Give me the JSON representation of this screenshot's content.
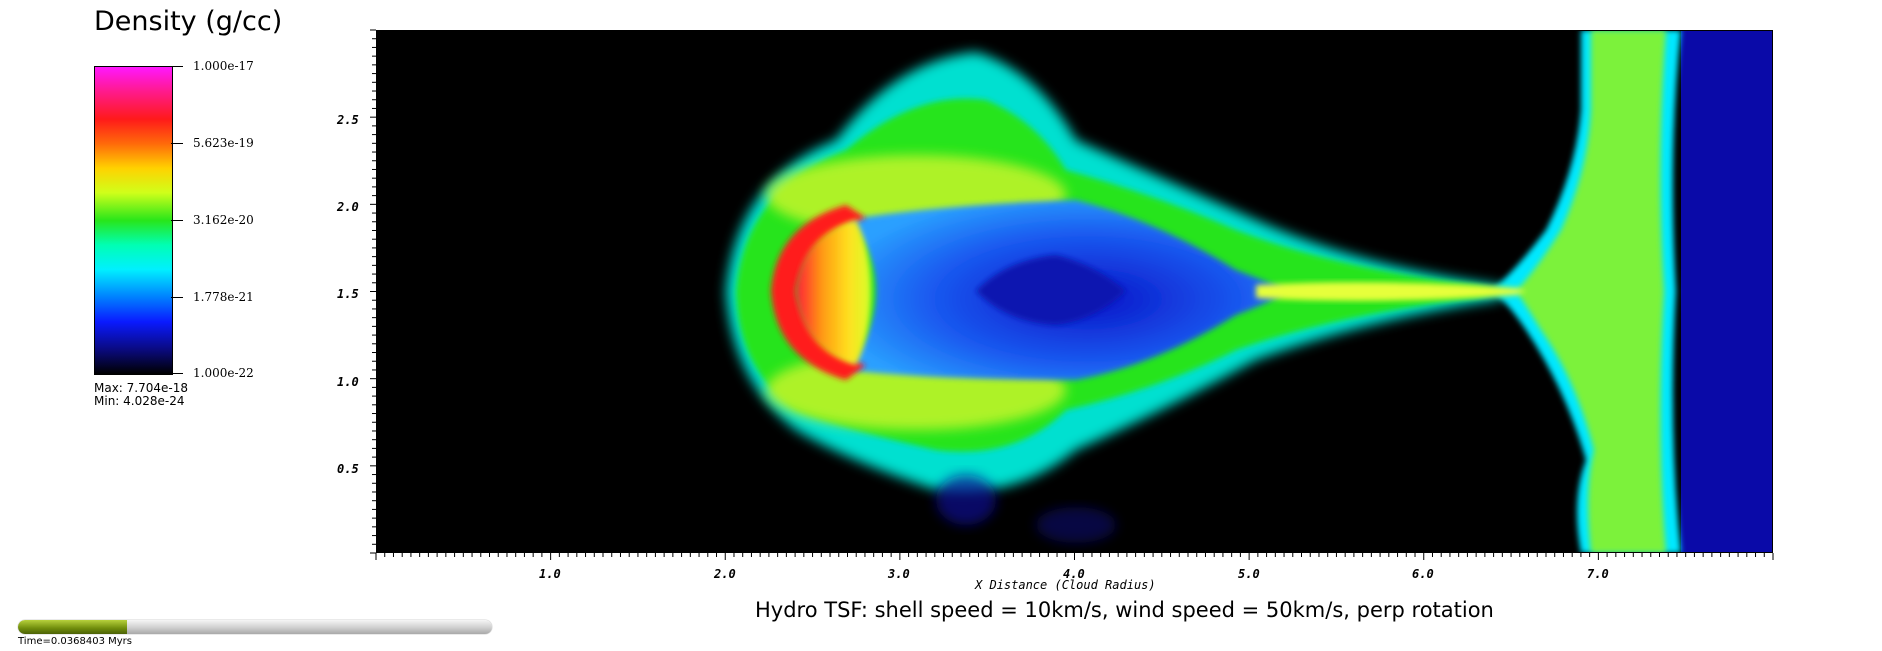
{
  "legend": {
    "title": "Density (g/cc)",
    "ticks": [
      "1.000e-17",
      "5.623e-19",
      "3.162e-20",
      "1.778e-21",
      "1.000e-22"
    ],
    "max_label": "Max:  7.704e-18",
    "min_label": "Min:  4.028e-24"
  },
  "plot": {
    "x_ticks": [
      "1.0",
      "2.0",
      "3.0",
      "4.0",
      "5.0",
      "6.0",
      "7.0"
    ],
    "y_ticks": [
      "2.5",
      "2.0",
      "1.5",
      "1.0",
      "0.5"
    ],
    "xlabel": "X Distance (Cloud Radius)",
    "caption": "Hydro TSF: shell speed = 10km/s, wind speed = 50km/s, perp rotation"
  },
  "time": {
    "label": "Time=0.0368403 Myrs",
    "progress_fraction": 0.23
  },
  "colors": {
    "background": "#000000",
    "wind": "#0a0aa8",
    "accent_time": "#6f8c0c"
  }
}
